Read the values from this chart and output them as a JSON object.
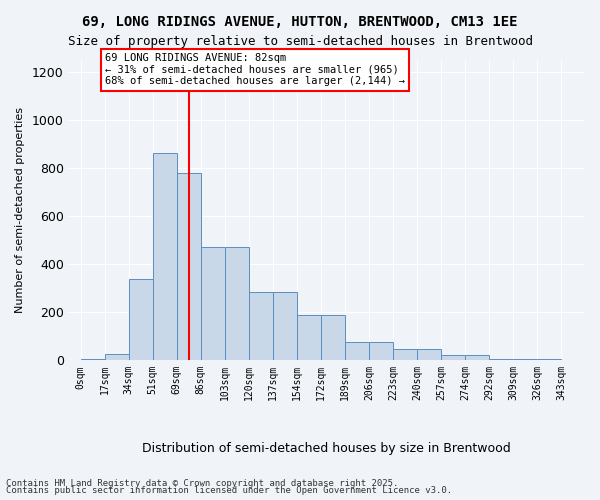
{
  "title1": "69, LONG RIDINGS AVENUE, HUTTON, BRENTWOOD, CM13 1EE",
  "title2": "Size of property relative to semi-detached houses in Brentwood",
  "xlabel": "Distribution of semi-detached houses by size in Brentwood",
  "ylabel": "Number of semi-detached properties",
  "bin_labels": [
    "0sqm",
    "17sqm",
    "34sqm",
    "51sqm",
    "69sqm",
    "86sqm",
    "103sqm",
    "120sqm",
    "137sqm",
    "154sqm",
    "172sqm",
    "189sqm",
    "206sqm",
    "223sqm",
    "240sqm",
    "257sqm",
    "274sqm",
    "292sqm",
    "309sqm",
    "326sqm",
    "343sqm"
  ],
  "bar_heights": [
    5,
    25,
    340,
    865,
    780,
    470,
    470,
    285,
    285,
    190,
    190,
    75,
    75,
    45,
    45,
    20,
    20,
    5,
    5,
    5,
    0
  ],
  "bar_color": "#c8d8e8",
  "bar_edge_color": "#5a8fc0",
  "vline_x": 4.5,
  "vline_color": "red",
  "annotation_text": "69 LONG RIDINGS AVENUE: 82sqm\n← 31% of semi-detached houses are smaller (965)\n68% of semi-detached houses are larger (2,144) →",
  "annotation_box_color": "white",
  "annotation_box_edge": "red",
  "ylim": [
    0,
    1250
  ],
  "yticks": [
    0,
    200,
    400,
    600,
    800,
    1000,
    1200
  ],
  "footer1": "Contains HM Land Registry data © Crown copyright and database right 2025.",
  "footer2": "Contains public sector information licensed under the Open Government Licence v3.0.",
  "bg_color": "#f0f4f8"
}
